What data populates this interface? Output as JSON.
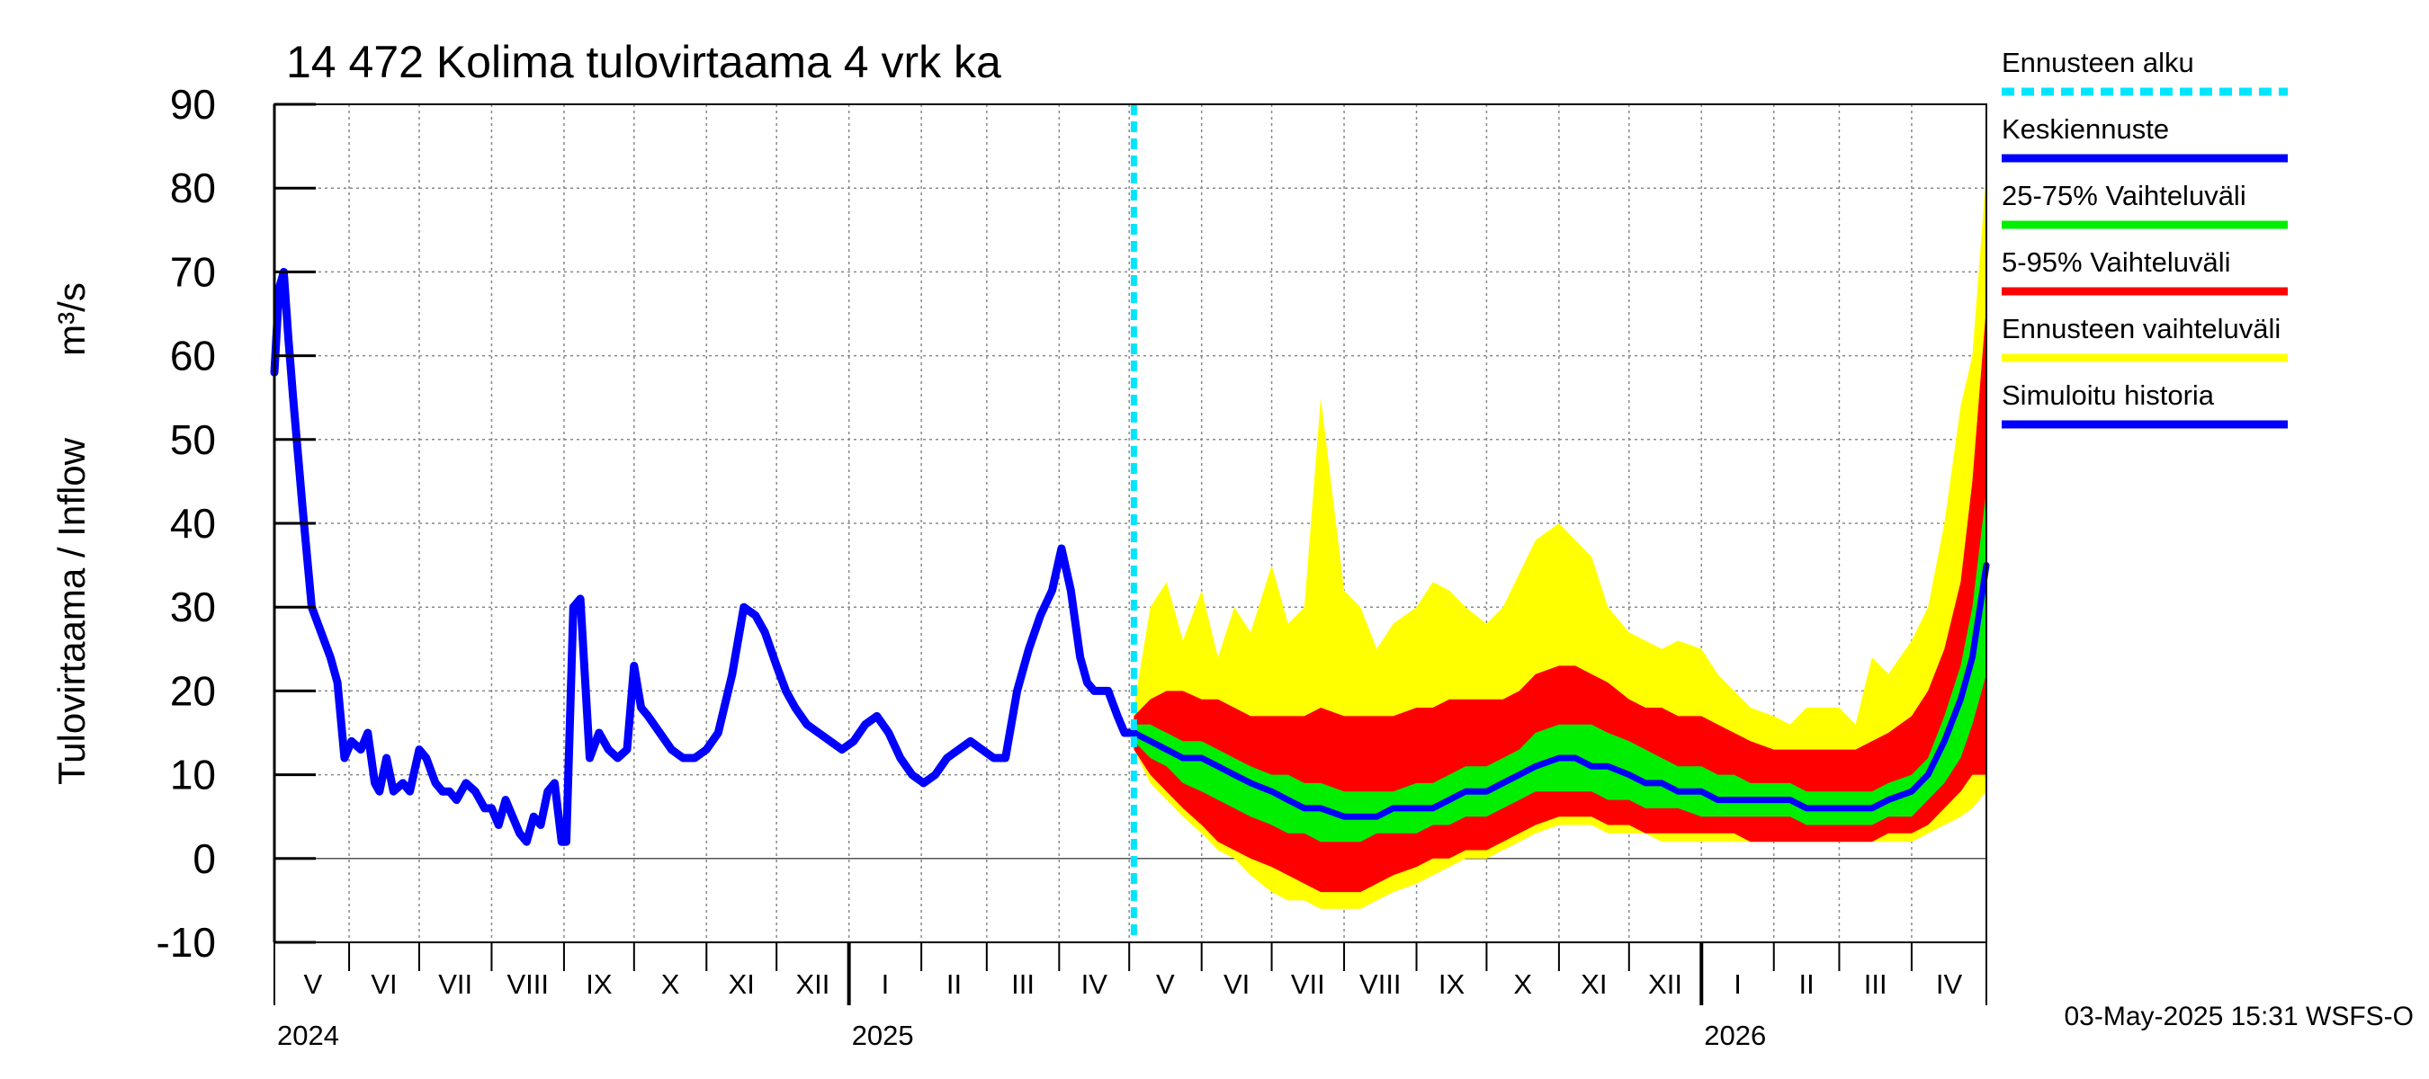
{
  "chart_data": {
    "type": "area",
    "title": "14 472 Kolima tulovirtaama 4 vrk ka",
    "ylabel": "Tulovirtaama / Inflow",
    "yunit": "m³/s",
    "ylim": [
      -10,
      90
    ],
    "yticks": [
      -10,
      0,
      10,
      20,
      30,
      40,
      50,
      60,
      70,
      80,
      90
    ],
    "xlim": [
      "2024-04-30",
      "2026-05-03"
    ],
    "forecast_start": "2025-05-03",
    "grid": true,
    "legend_position": "right",
    "months": [
      {
        "label": "V",
        "start": "2024-05-01"
      },
      {
        "label": "VI",
        "start": "2024-06-01"
      },
      {
        "label": "VII",
        "start": "2024-07-01"
      },
      {
        "label": "VIII",
        "start": "2024-08-01"
      },
      {
        "label": "IX",
        "start": "2024-09-01"
      },
      {
        "label": "X",
        "start": "2024-10-01"
      },
      {
        "label": "XI",
        "start": "2024-11-01"
      },
      {
        "label": "XII",
        "start": "2024-12-01"
      },
      {
        "label": "I",
        "start": "2025-01-01"
      },
      {
        "label": "II",
        "start": "2025-02-01"
      },
      {
        "label": "III",
        "start": "2025-03-01"
      },
      {
        "label": "IV",
        "start": "2025-04-01"
      },
      {
        "label": "V",
        "start": "2025-05-01"
      },
      {
        "label": "VI",
        "start": "2025-06-01"
      },
      {
        "label": "VII",
        "start": "2025-07-01"
      },
      {
        "label": "VIII",
        "start": "2025-08-01"
      },
      {
        "label": "IX",
        "start": "2025-09-01"
      },
      {
        "label": "X",
        "start": "2025-10-01"
      },
      {
        "label": "XI",
        "start": "2025-11-01"
      },
      {
        "label": "XII",
        "start": "2025-12-01"
      },
      {
        "label": "I",
        "start": "2026-01-01"
      },
      {
        "label": "II",
        "start": "2026-02-01"
      },
      {
        "label": "III",
        "start": "2026-03-01"
      },
      {
        "label": "IV",
        "start": "2026-04-01"
      }
    ],
    "years": [
      {
        "label": "2024",
        "start": "2024-04-30"
      },
      {
        "label": "2025",
        "start": "2025-01-01"
      },
      {
        "label": "2026",
        "start": "2026-01-01"
      }
    ],
    "history": {
      "name": "Simuloitu historia",
      "color": "#0000ff",
      "x": [
        "2024-04-30",
        "2024-05-02",
        "2024-05-04",
        "2024-05-06",
        "2024-05-08",
        "2024-05-12",
        "2024-05-16",
        "2024-05-20",
        "2024-05-24",
        "2024-05-27",
        "2024-05-30",
        "2024-06-02",
        "2024-06-06",
        "2024-06-09",
        "2024-06-12",
        "2024-06-14",
        "2024-06-17",
        "2024-06-20",
        "2024-06-24",
        "2024-06-27",
        "2024-07-01",
        "2024-07-04",
        "2024-07-08",
        "2024-07-11",
        "2024-07-14",
        "2024-07-17",
        "2024-07-21",
        "2024-07-25",
        "2024-07-29",
        "2024-08-01",
        "2024-08-04",
        "2024-08-07",
        "2024-08-10",
        "2024-08-13",
        "2024-08-16",
        "2024-08-19",
        "2024-08-22",
        "2024-08-25",
        "2024-08-28",
        "2024-08-31",
        "2024-09-02",
        "2024-09-05",
        "2024-09-08",
        "2024-09-12",
        "2024-09-16",
        "2024-09-20",
        "2024-09-24",
        "2024-09-28",
        "2024-10-01",
        "2024-10-04",
        "2024-10-07",
        "2024-10-12",
        "2024-10-17",
        "2024-10-22",
        "2024-10-27",
        "2024-11-01",
        "2024-11-06",
        "2024-11-12",
        "2024-11-17",
        "2024-11-22",
        "2024-11-26",
        "2024-12-01",
        "2024-12-05",
        "2024-12-09",
        "2024-12-14",
        "2024-12-19",
        "2024-12-24",
        "2024-12-29",
        "2025-01-03",
        "2025-01-08",
        "2025-01-13",
        "2025-01-18",
        "2025-01-23",
        "2025-01-28",
        "2025-02-02",
        "2025-02-07",
        "2025-02-12",
        "2025-02-17",
        "2025-02-22",
        "2025-02-27",
        "2025-03-04",
        "2025-03-09",
        "2025-03-14",
        "2025-03-19",
        "2025-03-24",
        "2025-03-29",
        "2025-04-02",
        "2025-04-06",
        "2025-04-10",
        "2025-04-13",
        "2025-04-16",
        "2025-04-19",
        "2025-04-22",
        "2025-04-26",
        "2025-04-29",
        "2025-05-03"
      ],
      "y": [
        58,
        68,
        70,
        62,
        55,
        42,
        30,
        27,
        24,
        21,
        12,
        14,
        13,
        15,
        9,
        8,
        12,
        8,
        9,
        8,
        13,
        12,
        9,
        8,
        8,
        7,
        9,
        8,
        6,
        6,
        4,
        7,
        5,
        3,
        2,
        5,
        4,
        8,
        9,
        2,
        2,
        30,
        31,
        12,
        15,
        13,
        12,
        13,
        23,
        18,
        17,
        15,
        13,
        12,
        12,
        13,
        15,
        22,
        30,
        29,
        27,
        23,
        20,
        18,
        16,
        15,
        14,
        13,
        14,
        16,
        17,
        15,
        12,
        10,
        9,
        10,
        12,
        13,
        14,
        13,
        12,
        12,
        20,
        25,
        29,
        32,
        37,
        32,
        24,
        21,
        20,
        20,
        20,
        17,
        15,
        15
      ]
    },
    "forecast": {
      "x": [
        "2025-05-03",
        "2025-05-10",
        "2025-05-17",
        "2025-05-24",
        "2025-06-01",
        "2025-06-08",
        "2025-06-15",
        "2025-06-22",
        "2025-07-01",
        "2025-07-08",
        "2025-07-15",
        "2025-07-22",
        "2025-08-01",
        "2025-08-08",
        "2025-08-15",
        "2025-08-22",
        "2025-09-01",
        "2025-09-08",
        "2025-09-15",
        "2025-09-22",
        "2025-10-01",
        "2025-10-08",
        "2025-10-15",
        "2025-10-22",
        "2025-11-01",
        "2025-11-08",
        "2025-11-15",
        "2025-11-22",
        "2025-12-01",
        "2025-12-08",
        "2025-12-15",
        "2025-12-22",
        "2026-01-01",
        "2026-01-08",
        "2026-01-15",
        "2026-01-22",
        "2026-02-01",
        "2026-02-08",
        "2026-02-15",
        "2026-02-22",
        "2026-03-01",
        "2026-03-08",
        "2026-03-15",
        "2026-03-22",
        "2026-04-01",
        "2026-04-08",
        "2026-04-15",
        "2026-04-22",
        "2026-04-27",
        "2026-05-03"
      ],
      "mean": [
        15,
        14,
        13,
        12,
        12,
        11,
        10,
        9,
        8,
        7,
        6,
        6,
        5,
        5,
        5,
        6,
        6,
        6,
        7,
        8,
        8,
        9,
        10,
        11,
        12,
        12,
        11,
        11,
        10,
        9,
        9,
        8,
        8,
        7,
        7,
        7,
        7,
        7,
        6,
        6,
        6,
        6,
        6,
        7,
        8,
        10,
        14,
        19,
        24,
        35
      ],
      "p25": [
        14,
        12,
        11,
        9,
        8,
        7,
        6,
        5,
        4,
        3,
        3,
        2,
        2,
        2,
        3,
        3,
        3,
        4,
        4,
        5,
        5,
        6,
        7,
        8,
        8,
        8,
        8,
        7,
        7,
        6,
        6,
        6,
        5,
        5,
        5,
        5,
        5,
        5,
        4,
        4,
        4,
        4,
        4,
        5,
        5,
        7,
        9,
        12,
        16,
        22
      ],
      "p75": [
        16,
        16,
        15,
        14,
        14,
        13,
        12,
        11,
        10,
        10,
        9,
        9,
        8,
        8,
        8,
        8,
        9,
        9,
        10,
        11,
        11,
        12,
        13,
        15,
        16,
        16,
        16,
        15,
        14,
        13,
        12,
        11,
        11,
        10,
        10,
        9,
        9,
        9,
        8,
        8,
        8,
        8,
        8,
        9,
        10,
        12,
        17,
        23,
        30,
        44
      ],
      "p5": [
        13,
        10,
        8,
        6,
        4,
        2,
        1,
        0,
        -1,
        -2,
        -3,
        -4,
        -4,
        -4,
        -3,
        -2,
        -1,
        0,
        0,
        1,
        1,
        2,
        3,
        4,
        5,
        5,
        5,
        4,
        4,
        3,
        3,
        3,
        3,
        3,
        3,
        2,
        2,
        2,
        2,
        2,
        2,
        2,
        2,
        3,
        3,
        4,
        6,
        8,
        10,
        10
      ],
      "p95": [
        17,
        19,
        20,
        20,
        19,
        19,
        18,
        17,
        17,
        17,
        17,
        18,
        17,
        17,
        17,
        17,
        18,
        18,
        19,
        19,
        19,
        19,
        20,
        22,
        23,
        23,
        22,
        21,
        19,
        18,
        18,
        17,
        17,
        16,
        15,
        14,
        13,
        13,
        13,
        13,
        13,
        13,
        14,
        15,
        17,
        20,
        25,
        33,
        45,
        66
      ],
      "min": [
        13,
        9,
        7,
        5,
        3,
        1,
        0,
        -2,
        -4,
        -5,
        -5,
        -6,
        -6,
        -6,
        -5,
        -4,
        -3,
        -2,
        -1,
        0,
        0,
        1,
        2,
        3,
        4,
        4,
        4,
        3,
        3,
        3,
        2,
        2,
        2,
        2,
        2,
        2,
        2,
        2,
        2,
        2,
        2,
        2,
        2,
        2,
        2,
        3,
        4,
        5,
        6,
        8
      ],
      "max": [
        18,
        30,
        33,
        26,
        32,
        24,
        30,
        27,
        35,
        28,
        30,
        55,
        32,
        30,
        25,
        28,
        30,
        33,
        32,
        30,
        28,
        30,
        34,
        38,
        40,
        38,
        36,
        30,
        27,
        26,
        25,
        26,
        25,
        22,
        20,
        18,
        17,
        16,
        18,
        18,
        18,
        16,
        24,
        22,
        26,
        30,
        40,
        54,
        60,
        82
      ]
    },
    "series": [
      {
        "name": "Ennusteen alku",
        "color": "#00e5ff"
      },
      {
        "name": "Keskiennuste",
        "color": "#0000ff"
      },
      {
        "name": "25-75% Vaihteluväli",
        "color": "#00ee00"
      },
      {
        "name": "5-95% Vaihteluväli",
        "color": "#ff0000"
      },
      {
        "name": "Ennusteen vaihteluväli",
        "color": "#ffff00"
      },
      {
        "name": "Simuloitu historia",
        "color": "#0000ff"
      }
    ],
    "footer": "03-May-2025 15:31 WSFS-O"
  }
}
